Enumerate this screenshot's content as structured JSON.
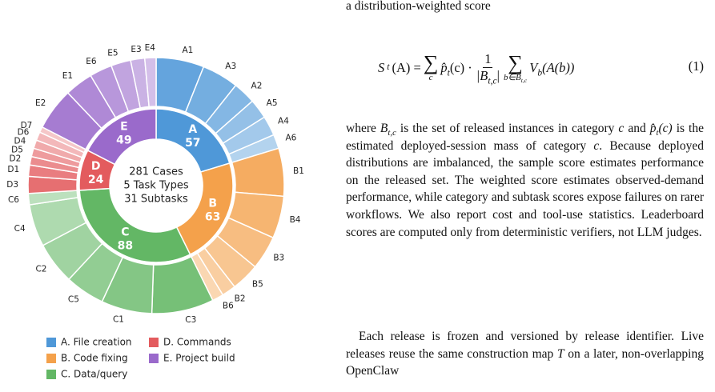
{
  "chart_data": {
    "type": "sunburst",
    "center_text": [
      "281 Cases",
      "5 Task Types",
      "31 Subtasks"
    ],
    "categories": [
      "A",
      "B",
      "C",
      "D",
      "E"
    ],
    "values": [
      57,
      63,
      88,
      24,
      49
    ],
    "colors": [
      "#4f98d8",
      "#f4a14b",
      "#63b765",
      "#e35b5e",
      "#9a6acb"
    ],
    "legend": [
      "A. File creation",
      "B. Code fixing",
      "C. Data/query",
      "D. Commands",
      "E. Project build"
    ],
    "legend_position": "bottom",
    "subtasks": [
      {
        "categories": [
          "A1",
          "A3",
          "A2",
          "A5",
          "A4",
          "A6"
        ],
        "values": [
          17,
          13,
          8,
          7,
          7,
          5
        ]
      },
      {
        "categories": [
          "B1",
          "B4",
          "B3",
          "B5",
          "B2",
          "B6"
        ],
        "values": [
          17,
          15,
          12,
          10,
          5,
          4
        ]
      },
      {
        "categories": [
          "C3",
          "C1",
          "C5",
          "C2",
          "C4",
          "C6"
        ],
        "values": [
          22,
          18,
          14,
          15,
          15,
          4
        ]
      },
      {
        "categories": [
          "D3",
          "D1",
          "D2",
          "D5",
          "D4",
          "D6",
          "D7"
        ],
        "values": [
          6,
          4,
          3,
          3,
          3,
          3,
          2
        ]
      },
      {
        "categories": [
          "E2",
          "E1",
          "E6",
          "E5",
          "E3",
          "E4"
        ],
        "values": [
          15,
          10,
          8,
          7,
          5,
          4
        ]
      }
    ]
  },
  "text": {
    "lead": "a distribution-weighted score",
    "equation": {
      "lhs": "S",
      "lhs_sub": "t",
      "lhs_arg": "(A) =",
      "sum1": "∑",
      "sum1_sub": "c",
      "p": "p̂",
      "p_sub": "t",
      "p_arg": "(c) ·",
      "frac_num": "1",
      "frac_den": "|B",
      "frac_den_sub": "t,c",
      "frac_den_end": "|",
      "sum2": "∑",
      "sum2_sub": "b∈B",
      "sum2_sub_sub": "t,c",
      "v": "V",
      "v_sub": "b",
      "v_arg": "(A(b))",
      "number": "(1)"
    },
    "paragraph1": [
      {
        "text": "where ",
        "style": "plain"
      },
      {
        "text": "B",
        "style": "math"
      },
      {
        "text": "t,c",
        "style": "sub"
      },
      {
        "text": " is the set of released instances in category ",
        "style": "plain"
      },
      {
        "text": "c",
        "style": "math"
      },
      {
        "text": " and ",
        "style": "plain"
      },
      {
        "text": "p̂",
        "style": "math"
      },
      {
        "text": "t",
        "style": "sub"
      },
      {
        "text": "(c)",
        "style": "math"
      },
      {
        "text": " is the estimated deployed-session mass of category ",
        "style": "plain"
      },
      {
        "text": "c",
        "style": "math"
      },
      {
        "text": ". Because deployed distributions are imbalanced, the sample score estimates performance on the released set. The weighted score estimates observed-demand performance, while category and subtask scores expose failures on rarer workflows. We also report cost and tool-use statistics. Leaderboard scores are computed only from deterministic verifiers, not LLM judges.",
        "style": "plain"
      }
    ],
    "paragraph2": [
      {
        "text": "Each release is frozen and versioned by release identifier. Live releases reuse the same construction map ",
        "style": "plain"
      },
      {
        "text": "T",
        "style": "math"
      },
      {
        "text": " on a later, non-overlapping OpenClaw",
        "style": "plain"
      }
    ]
  }
}
